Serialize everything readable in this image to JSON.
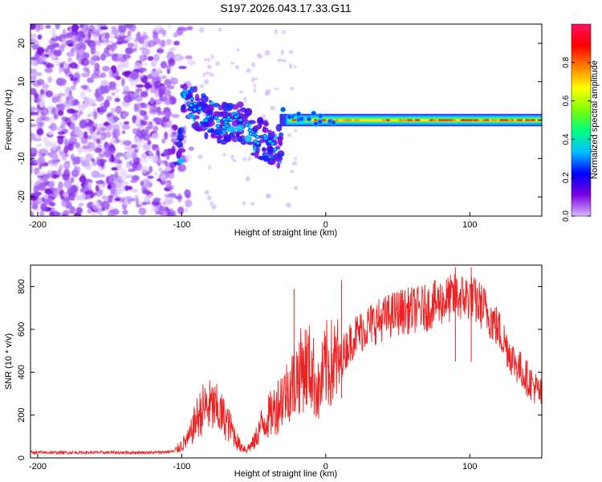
{
  "figure_title": "S197.2026.043.17.33.G11",
  "chart_data": [
    {
      "type": "heatmap",
      "name": "spectrogram",
      "title": "S197.2026.043.17.33.G11",
      "xlabel": "Height of straight line (km)",
      "ylabel": "Frequency (Hz)",
      "xlim": [
        -205,
        150
      ],
      "ylim": [
        -25,
        25
      ],
      "xticks": [
        -200,
        -100,
        0,
        100
      ],
      "yticks": [
        20,
        10,
        0,
        -10,
        -20
      ],
      "grid": false,
      "colorbar": {
        "label": "Normalized spectral amplitude",
        "range": [
          0,
          1
        ],
        "ticks": [
          0.0,
          0.2,
          0.4,
          0.6,
          0.8
        ],
        "colormap": [
          "#d8b8ff",
          "#7a00e0",
          "#0000ff",
          "#00c0ff",
          "#00ff80",
          "#80ff00",
          "#ffff00",
          "#ff8000",
          "#ff0000",
          "#ff1060"
        ]
      },
      "features": {
        "noise_region_x": [
          -205,
          -105
        ],
        "descending_feature": [
          [
            -100,
            8
          ],
          [
            -90,
            3
          ],
          [
            -80,
            0
          ],
          [
            -70,
            -1
          ],
          [
            -60,
            0
          ],
          [
            -50,
            -4
          ],
          [
            -40,
            -6
          ],
          [
            -33,
            -7
          ]
        ],
        "carrier_start_x": -32,
        "carrier_frequency": 0,
        "carrier_band_halfwidth": 1.2
      }
    },
    {
      "type": "line",
      "name": "snr",
      "xlabel": "Height of straight line (km)",
      "ylabel": "SNR (10 * v/v)",
      "xlim": [
        -205,
        150
      ],
      "ylim": [
        0,
        900
      ],
      "xticks": [
        -200,
        -100,
        0,
        100
      ],
      "yticks": [
        0,
        200,
        400,
        600,
        800
      ],
      "grid": false,
      "line_color": "#ee2222",
      "series": [
        {
          "name": "SNR",
          "x": [
            -205,
            -180,
            -160,
            -140,
            -120,
            -105,
            -95,
            -90,
            -85,
            -80,
            -75,
            -70,
            -65,
            -60,
            -55,
            -50,
            -45,
            -40,
            -35,
            -30,
            -25,
            -20,
            -15,
            -10,
            -5,
            0,
            5,
            10,
            15,
            20,
            30,
            40,
            50,
            60,
            70,
            80,
            90,
            100,
            110,
            120,
            130,
            140,
            150
          ],
          "values": [
            25,
            25,
            25,
            25,
            25,
            30,
            90,
            180,
            230,
            240,
            220,
            180,
            130,
            60,
            40,
            70,
            150,
            190,
            230,
            290,
            330,
            380,
            430,
            420,
            300,
            430,
            440,
            450,
            520,
            570,
            620,
            650,
            680,
            690,
            700,
            730,
            750,
            750,
            700,
            600,
            460,
            370,
            290
          ]
        }
      ],
      "annotations": [
        {
          "x": -22,
          "value": 790
        },
        {
          "x": 11,
          "value": 830
        },
        {
          "x": 90,
          "value": 890
        },
        {
          "x": 101,
          "value": 890
        }
      ]
    }
  ]
}
